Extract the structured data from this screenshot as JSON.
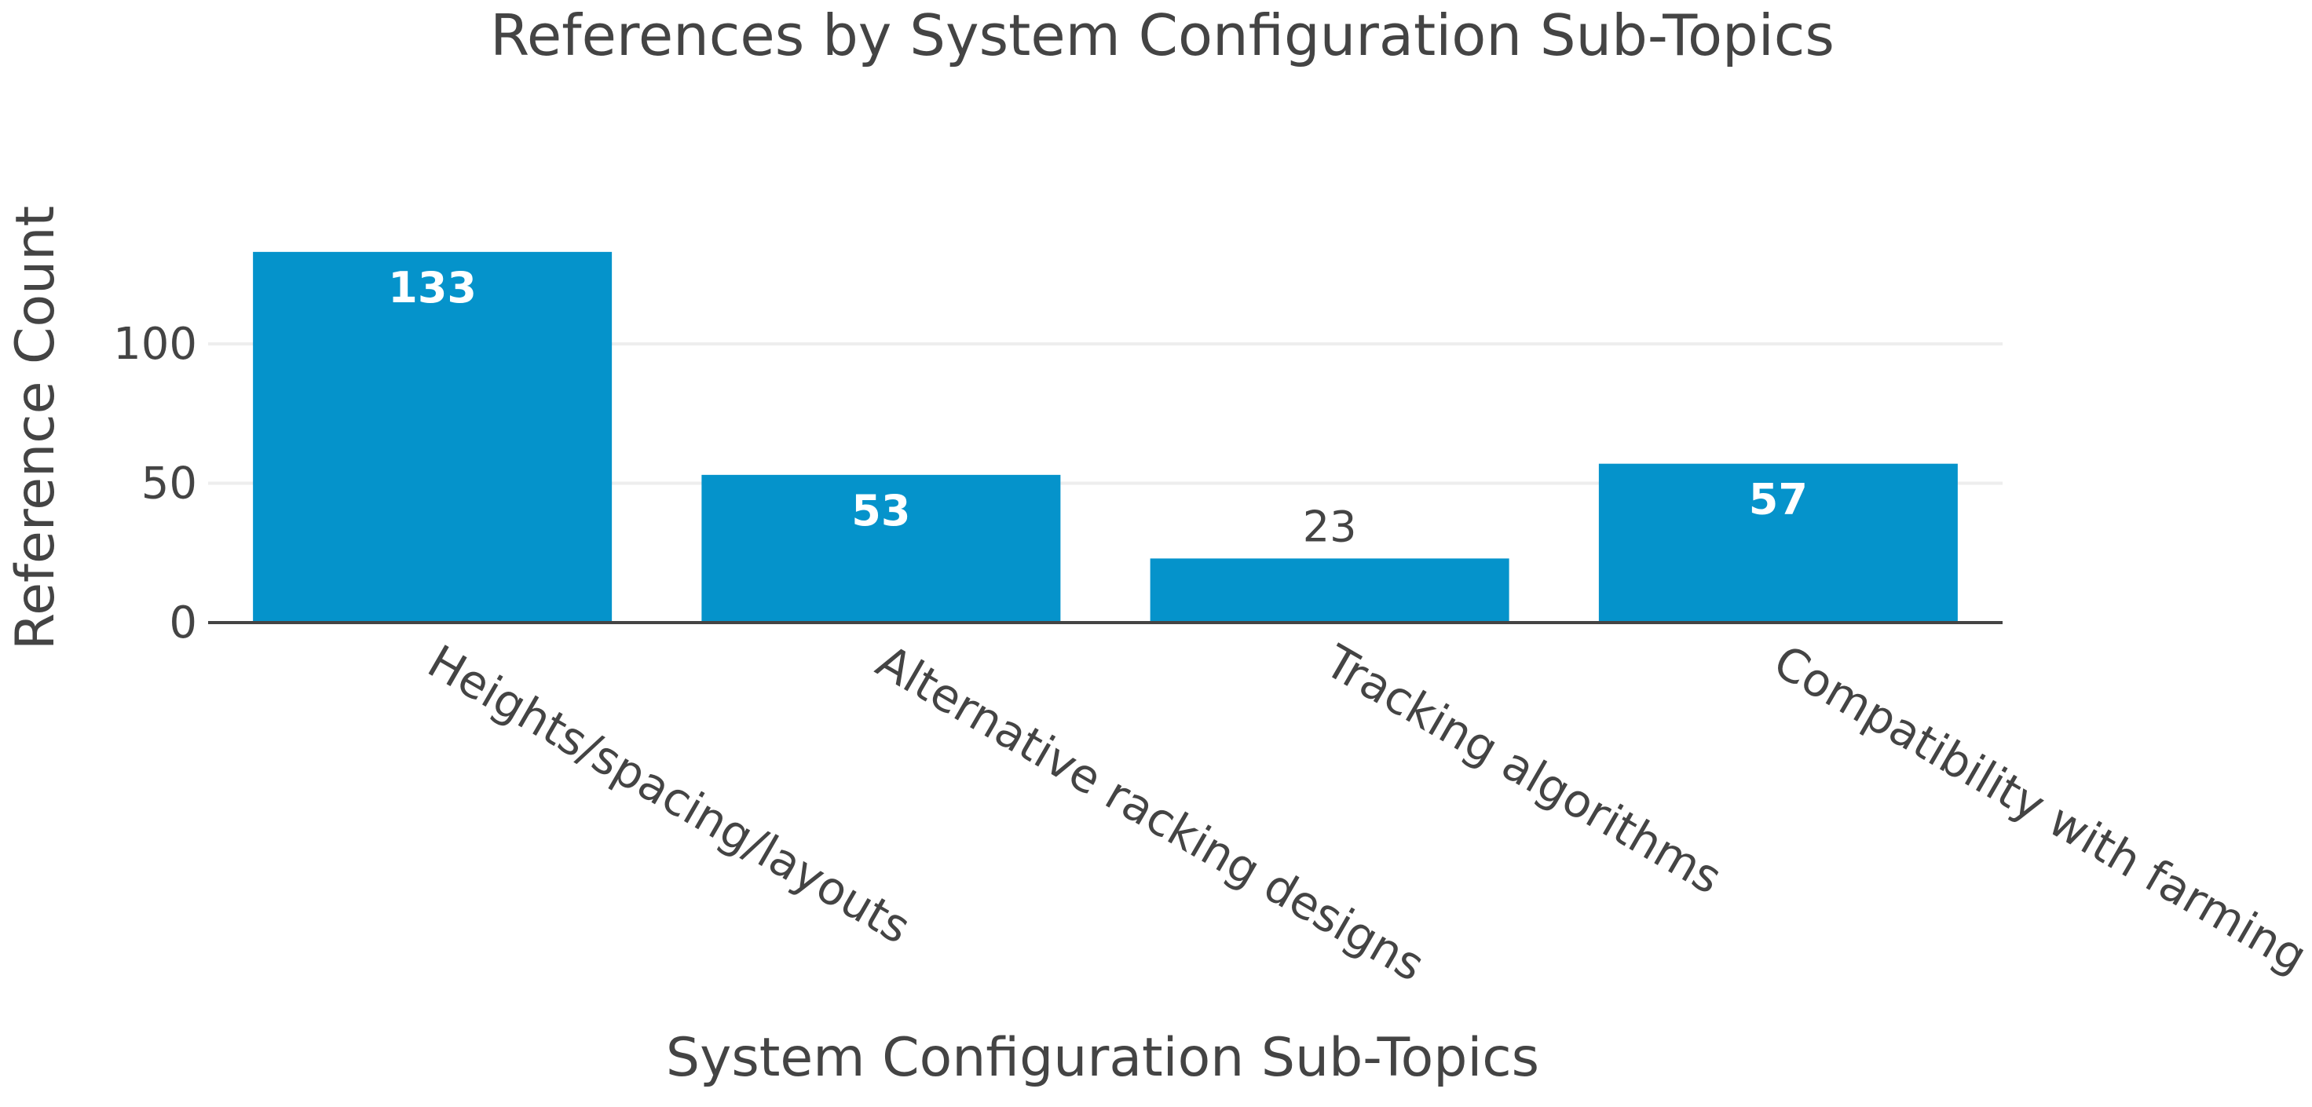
{
  "chart_data": {
    "type": "bar",
    "title": "References by System Configuration Sub-Topics",
    "xlabel": "System Configuration Sub-Topics",
    "ylabel": "Reference Count",
    "categories": [
      "Heights/spacing/layouts",
      "Alternative racking designs",
      "Tracking algorithms",
      "Compatibility with farming"
    ],
    "values": [
      133,
      53,
      23,
      57
    ],
    "data_labels": [
      "133",
      "53",
      "23",
      "57"
    ],
    "ylim": [
      0,
      140
    ],
    "yticks": [
      0,
      50,
      100
    ],
    "ytick_labels": [
      "0",
      "50",
      "100"
    ],
    "grid": true,
    "legend": false,
    "bar_color": "#0593cb",
    "grid_color": "#eeeeee",
    "axis_color": "#444444",
    "text_color": "#444444"
  }
}
